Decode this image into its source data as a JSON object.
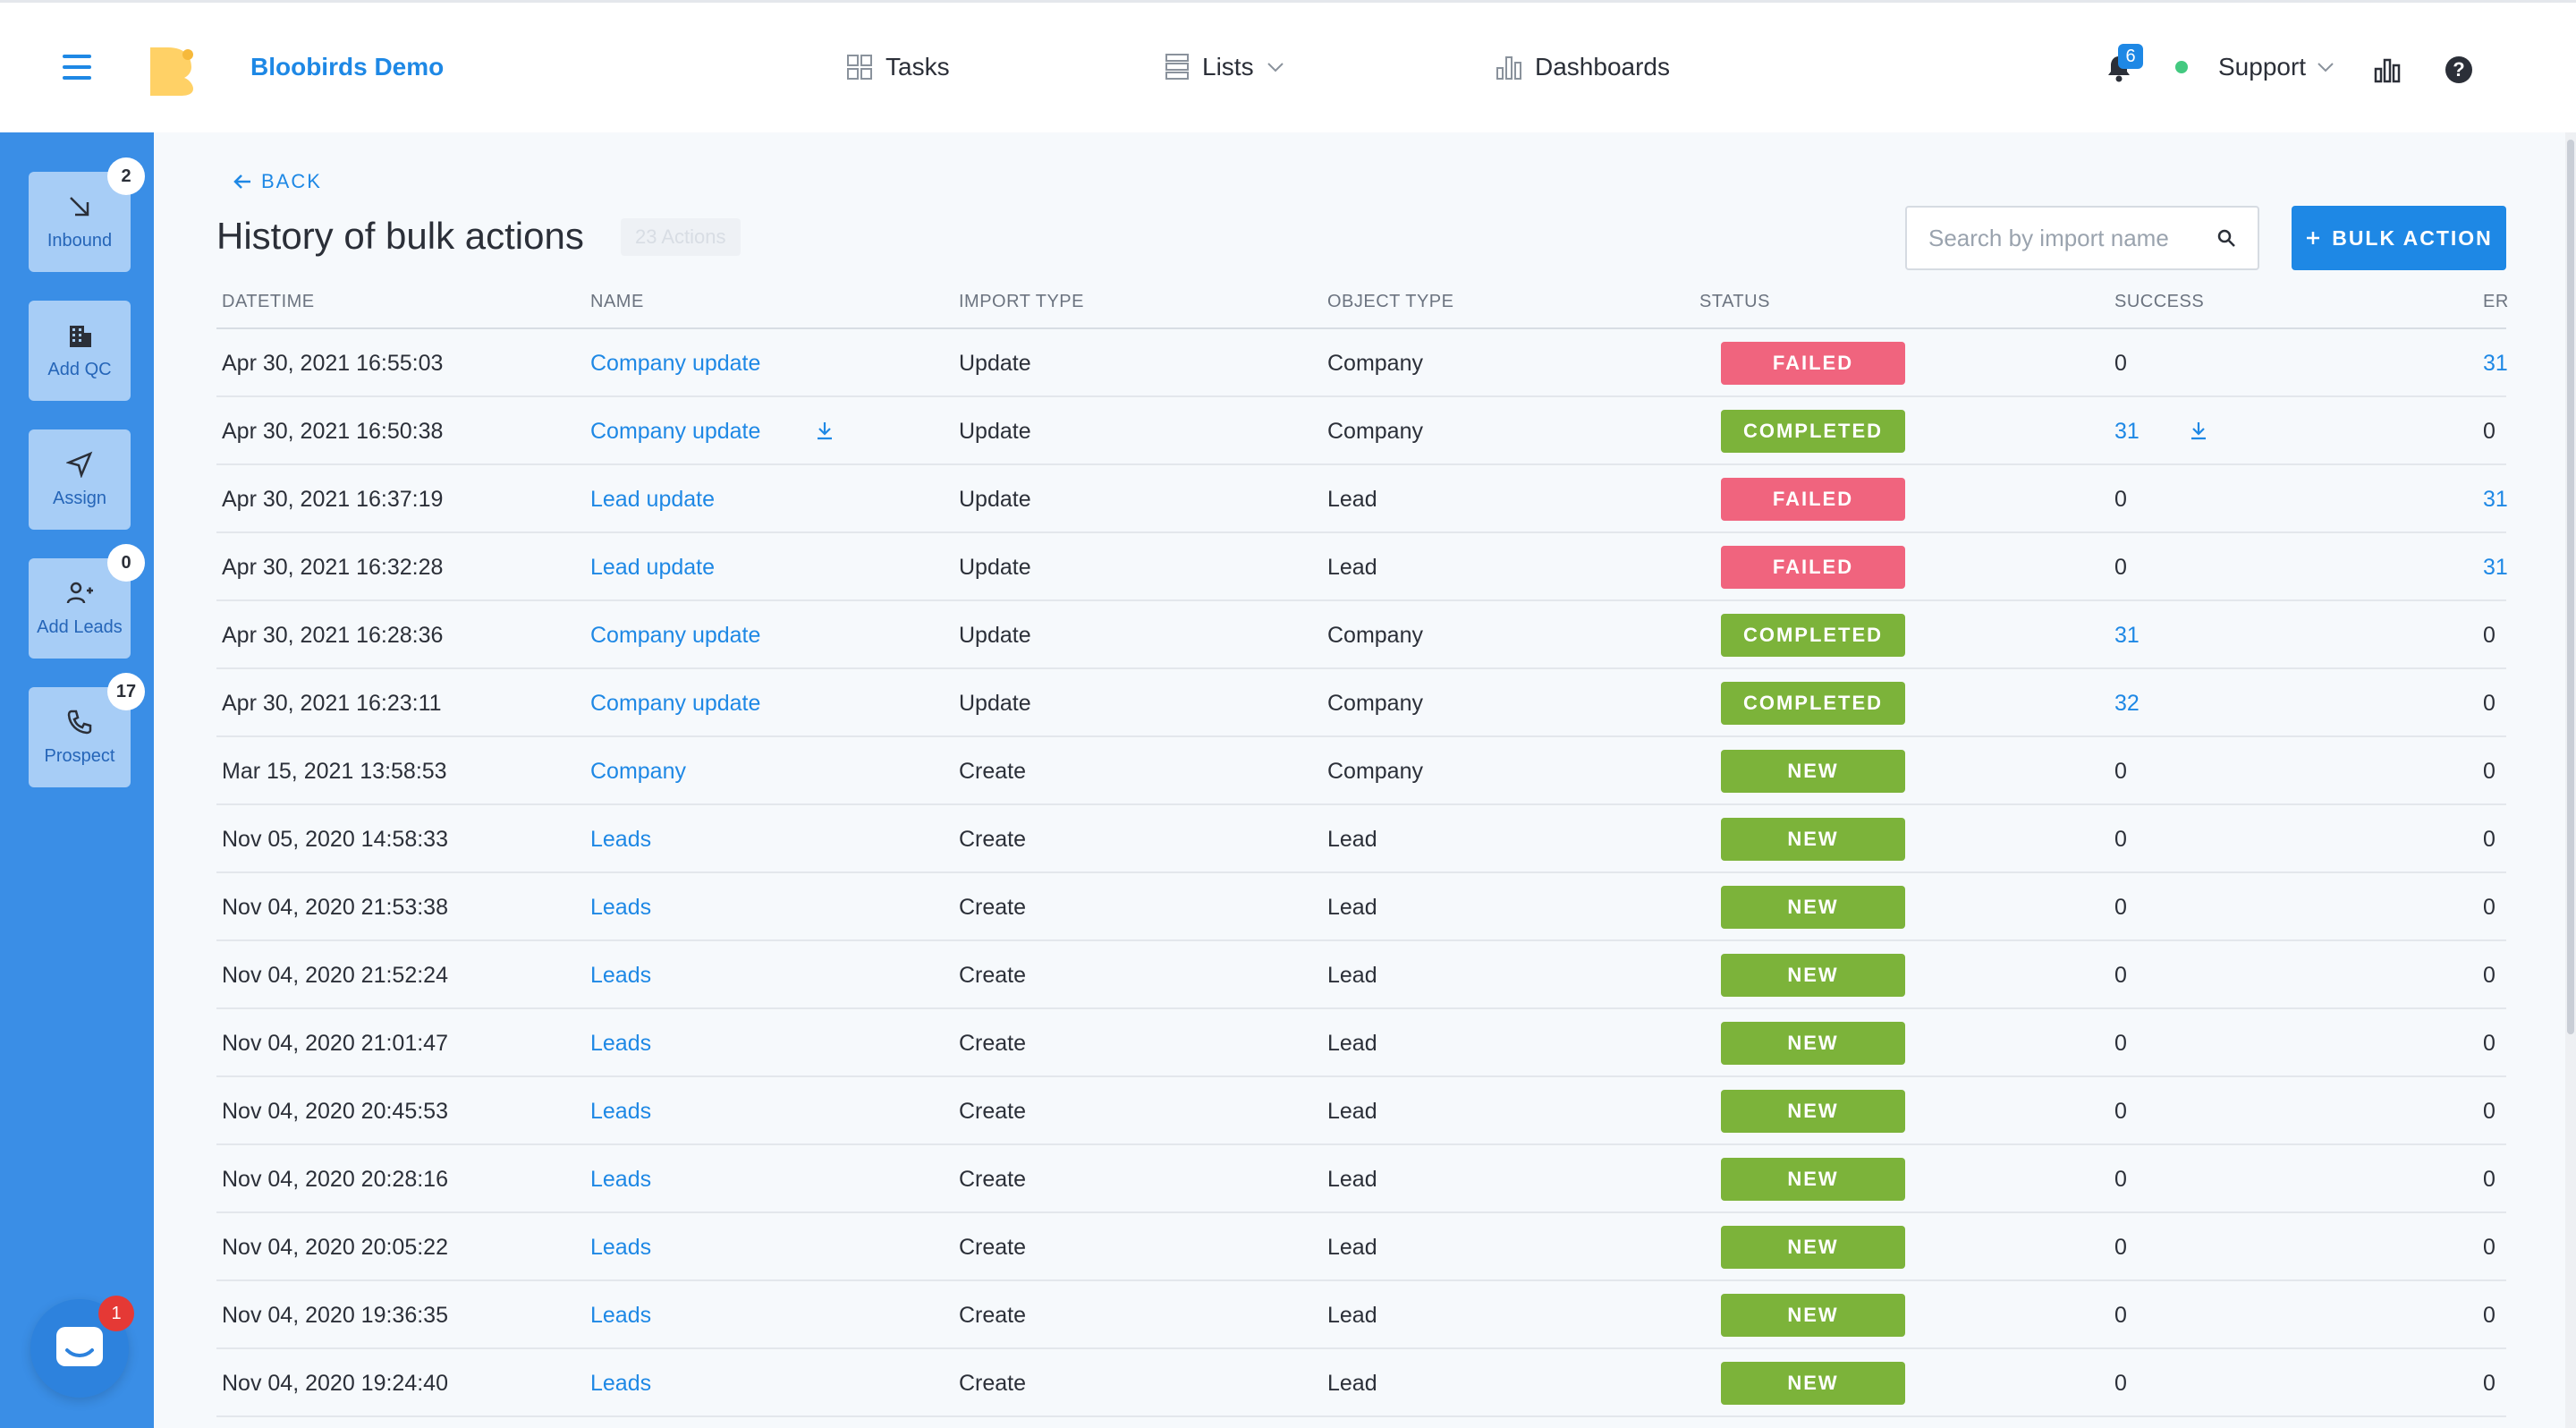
{
  "header": {
    "app_name": "Bloobirds Demo",
    "nav": {
      "tasks": "Tasks",
      "lists": "Lists",
      "dashboards": "Dashboards"
    },
    "notifications_count": "6",
    "support_label": "Support",
    "help_glyph": "?"
  },
  "sidebar": {
    "items": [
      {
        "label": "Inbound",
        "icon": "arrow-down-right-icon",
        "badge": "2"
      },
      {
        "label": "Add QC",
        "icon": "building-icon",
        "badge": ""
      },
      {
        "label": "Assign",
        "icon": "send-icon",
        "badge": ""
      },
      {
        "label": "Add Leads",
        "icon": "add-user-icon",
        "badge": "0"
      },
      {
        "label": "Prospect",
        "icon": "phone-icon",
        "badge": "17"
      }
    ],
    "chat_badge": "1"
  },
  "page": {
    "back_label": "BACK",
    "title": "History of bulk actions",
    "count_label": "23 Actions",
    "search_placeholder": "Search by import name",
    "bulk_action_label": "BULK ACTION"
  },
  "table": {
    "headers": [
      "DATETIME",
      "NAME",
      "IMPORT TYPE",
      "OBJECT TYPE",
      "STATUS",
      "SUCCESS",
      "ER"
    ],
    "rows": [
      {
        "datetime": "Apr 30, 2021 16:55:03",
        "name": "Company update",
        "import_type": "Update",
        "object_type": "Company",
        "status": "FAILED",
        "success": "0",
        "errors": "31"
      },
      {
        "datetime": "Apr 30, 2021 16:50:38",
        "name": "Company update",
        "import_type": "Update",
        "object_type": "Company",
        "status": "COMPLETED",
        "success": "31",
        "errors": "0"
      },
      {
        "datetime": "Apr 30, 2021 16:37:19",
        "name": "Lead update",
        "import_type": "Update",
        "object_type": "Lead",
        "status": "FAILED",
        "success": "0",
        "errors": "31"
      },
      {
        "datetime": "Apr 30, 2021 16:32:28",
        "name": "Lead update",
        "import_type": "Update",
        "object_type": "Lead",
        "status": "FAILED",
        "success": "0",
        "errors": "31"
      },
      {
        "datetime": "Apr 30, 2021 16:28:36",
        "name": "Company update",
        "import_type": "Update",
        "object_type": "Company",
        "status": "COMPLETED",
        "success": "31",
        "errors": "0"
      },
      {
        "datetime": "Apr 30, 2021 16:23:11",
        "name": "Company update",
        "import_type": "Update",
        "object_type": "Company",
        "status": "COMPLETED",
        "success": "32",
        "errors": "0"
      },
      {
        "datetime": "Mar 15, 2021 13:58:53",
        "name": "Company",
        "import_type": "Create",
        "object_type": "Company",
        "status": "NEW",
        "success": "0",
        "errors": "0"
      },
      {
        "datetime": "Nov 05, 2020 14:58:33",
        "name": "Leads",
        "import_type": "Create",
        "object_type": "Lead",
        "status": "NEW",
        "success": "0",
        "errors": "0"
      },
      {
        "datetime": "Nov 04, 2020 21:53:38",
        "name": "Leads",
        "import_type": "Create",
        "object_type": "Lead",
        "status": "NEW",
        "success": "0",
        "errors": "0"
      },
      {
        "datetime": "Nov 04, 2020 21:52:24",
        "name": "Leads",
        "import_type": "Create",
        "object_type": "Lead",
        "status": "NEW",
        "success": "0",
        "errors": "0"
      },
      {
        "datetime": "Nov 04, 2020 21:01:47",
        "name": "Leads",
        "import_type": "Create",
        "object_type": "Lead",
        "status": "NEW",
        "success": "0",
        "errors": "0"
      },
      {
        "datetime": "Nov 04, 2020 20:45:53",
        "name": "Leads",
        "import_type": "Create",
        "object_type": "Lead",
        "status": "NEW",
        "success": "0",
        "errors": "0"
      },
      {
        "datetime": "Nov 04, 2020 20:28:16",
        "name": "Leads",
        "import_type": "Create",
        "object_type": "Lead",
        "status": "NEW",
        "success": "0",
        "errors": "0"
      },
      {
        "datetime": "Nov 04, 2020 20:05:22",
        "name": "Leads",
        "import_type": "Create",
        "object_type": "Lead",
        "status": "NEW",
        "success": "0",
        "errors": "0"
      },
      {
        "datetime": "Nov 04, 2020 19:36:35",
        "name": "Leads",
        "import_type": "Create",
        "object_type": "Lead",
        "status": "NEW",
        "success": "0",
        "errors": "0"
      },
      {
        "datetime": "Nov 04, 2020 19:24:40",
        "name": "Leads",
        "import_type": "Create",
        "object_type": "Lead",
        "status": "NEW",
        "success": "0",
        "errors": "0"
      }
    ]
  },
  "colors": {
    "accent": "#1e88e5",
    "sidebar": "#3a8ee6",
    "failed": "#f0647e",
    "completed": "#7cb33a",
    "online": "#43c980"
  }
}
